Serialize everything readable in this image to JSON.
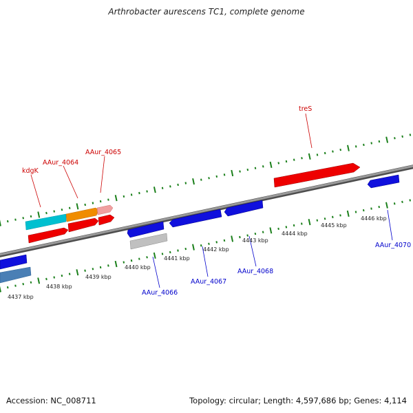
{
  "title": "Arthrobacter aurescens TC1, complete genome",
  "footer": {
    "accession": "Accession: NC_008711",
    "summary": "Topology: circular; Length: 4,597,686 bp; Genes: 4,114"
  },
  "colors": {
    "forward_gene": "#ee0000",
    "reverse_gene": "#1010dd",
    "backbone": "#8c8c8c",
    "tick": "#1a7f1a",
    "label_forward": "#cc0000",
    "label_reverse": "#0000cc"
  },
  "position_scale": {
    "ticks": [
      "4437 kbp",
      "4438 kbp",
      "4439 kbp",
      "4440 kbp",
      "4441 kbp",
      "4442 kbp",
      "4443 kbp",
      "4444 kbp",
      "4445 kbp",
      "4446 kbp"
    ]
  },
  "labels": {
    "forward": [
      "kdgK",
      "AAur_4064",
      "AAur_4065",
      "treS"
    ],
    "reverse": [
      "AAur_4066",
      "AAur_4067",
      "AAur_4068",
      "AAur_4070"
    ]
  }
}
